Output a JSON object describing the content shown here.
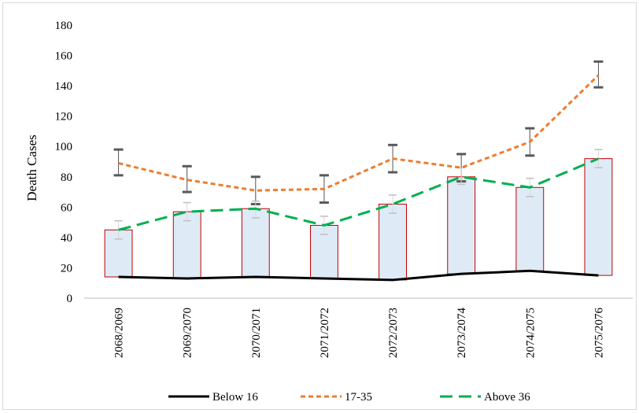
{
  "chart_data": {
    "type": "line",
    "title": "",
    "ylabel": "Death Cases",
    "xlabel": "",
    "ylim": [
      0,
      180
    ],
    "yticks": [
      0,
      20,
      40,
      60,
      80,
      100,
      120,
      140,
      160,
      180
    ],
    "categories": [
      "2068/2069",
      "2069/2070",
      "2070/2071",
      "2071/2072",
      "2072/2073",
      "2073/2074",
      "2074/2075",
      "2075/2076"
    ],
    "series": [
      {
        "name": "Below 16",
        "color": "#000000",
        "style": "solid",
        "values": [
          14,
          13,
          14,
          13,
          12,
          16,
          18,
          15
        ]
      },
      {
        "name": "17-35",
        "color": "#ed7d31",
        "style": "short-dash",
        "values": [
          89,
          78,
          71,
          72,
          92,
          86,
          103,
          147
        ],
        "error_bars": [
          [
            81,
            98
          ],
          [
            70,
            87
          ],
          [
            62,
            80
          ],
          [
            63,
            81
          ],
          [
            83,
            101
          ],
          [
            77,
            95
          ],
          [
            94,
            112
          ],
          [
            139,
            156
          ]
        ]
      },
      {
        "name": "Above 36",
        "color": "#00b050",
        "style": "long-dash",
        "values": [
          45,
          57,
          59,
          48,
          62,
          80,
          73,
          92
        ],
        "error_bars": [
          [
            39,
            51
          ],
          [
            51,
            63
          ],
          [
            53,
            64
          ],
          [
            42,
            54
          ],
          [
            56,
            68
          ],
          [
            75,
            86
          ],
          [
            67,
            79
          ],
          [
            86,
            98
          ]
        ]
      }
    ],
    "boxes": {
      "fill": "#deebf7",
      "stroke": "#c00000",
      "low_series": "Below 16",
      "high_series": "Above 36"
    },
    "legend_position": "bottom",
    "grid": false
  }
}
